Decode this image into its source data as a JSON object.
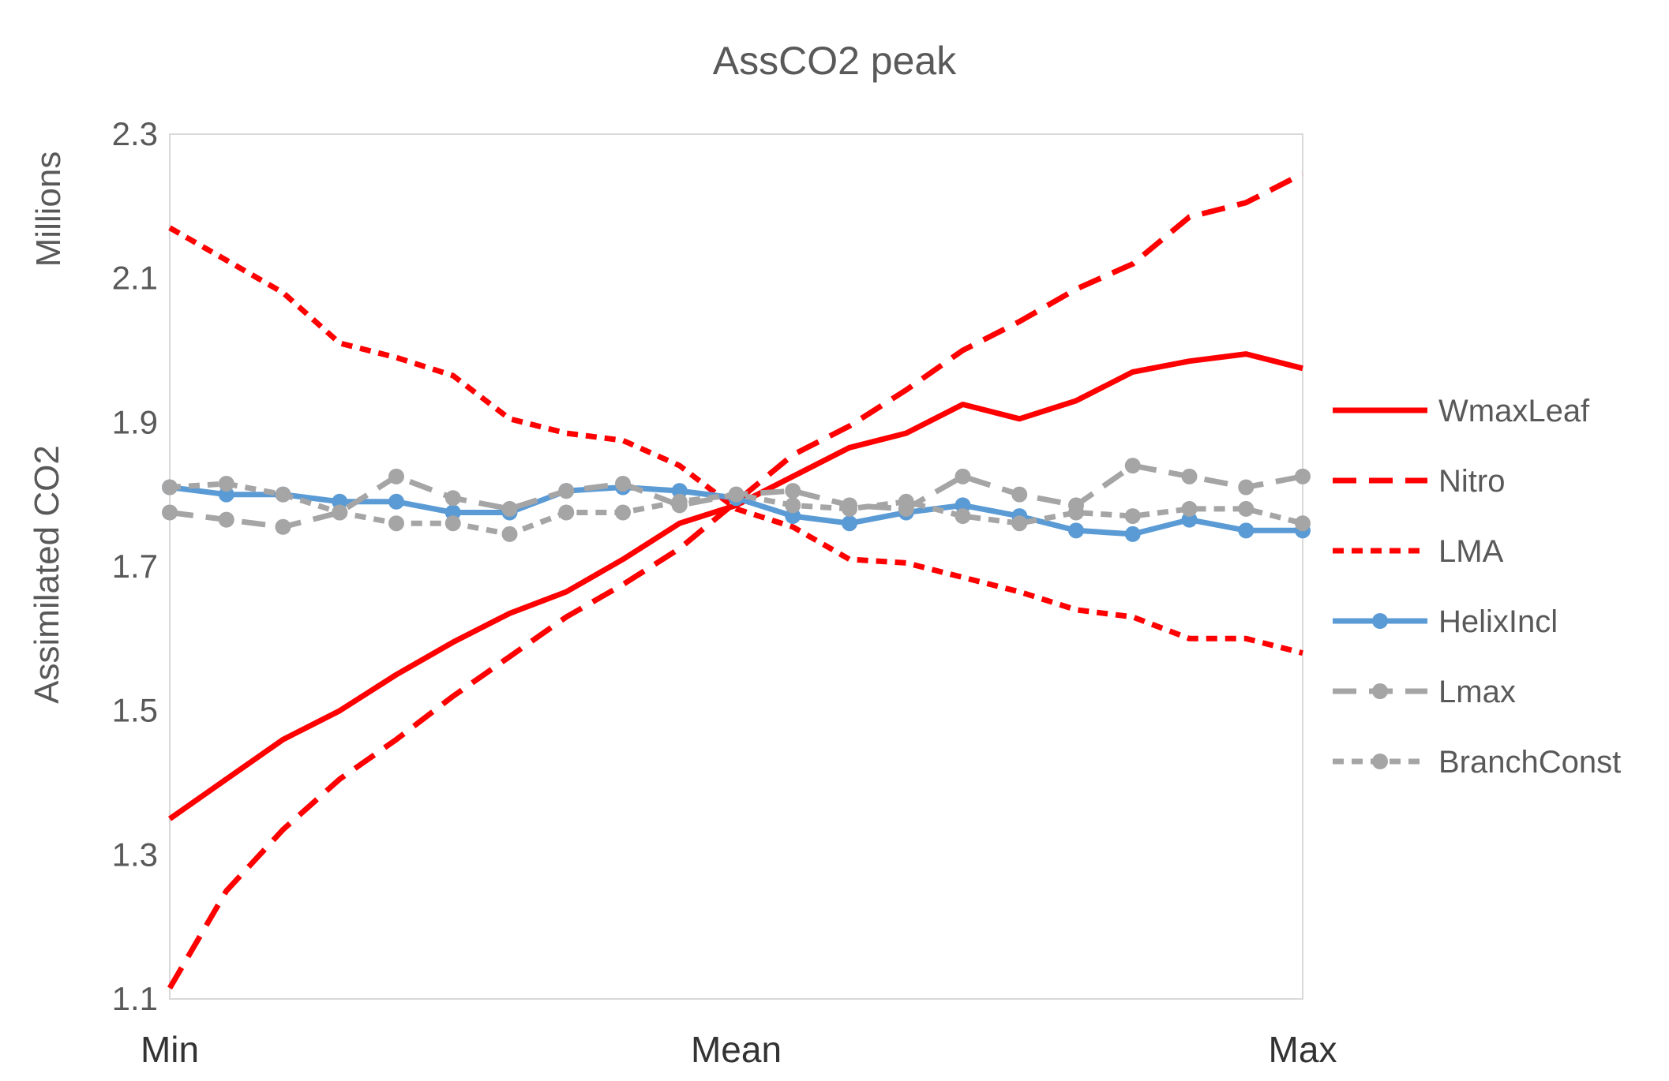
{
  "chart_data": {
    "type": "line",
    "title": "AssCO2 peak",
    "ylabel": "Assimilated CO2",
    "yunit_label": "Millions",
    "xlabel": "",
    "x_tick_labels": [
      "Min",
      "Mean",
      "Max"
    ],
    "ylim": [
      1.1,
      2.3
    ],
    "y_ticks": [
      "1.1",
      "1.3",
      "1.5",
      "1.7",
      "1.9",
      "2.1",
      "2.3"
    ],
    "y_tick_values": [
      1.1,
      1.3,
      1.5,
      1.7,
      1.9,
      2.1,
      2.3
    ],
    "n_points": 21,
    "grid": false,
    "legend_position": "right",
    "series": [
      {
        "name": "WmaxLeaf",
        "color": "#ff0000",
        "dash": "solid",
        "marker": false,
        "values": [
          1.35,
          1.405,
          1.46,
          1.5,
          1.55,
          1.595,
          1.635,
          1.665,
          1.71,
          1.76,
          1.785,
          1.825,
          1.865,
          1.885,
          1.925,
          1.905,
          1.93,
          1.97,
          1.985,
          1.995,
          1.975
        ]
      },
      {
        "name": "Nitro",
        "color": "#ff0000",
        "dash": "long-dash",
        "marker": false,
        "values": [
          1.115,
          1.25,
          1.335,
          1.405,
          1.46,
          1.52,
          1.575,
          1.63,
          1.675,
          1.725,
          1.79,
          1.855,
          1.895,
          1.945,
          2.0,
          2.04,
          2.085,
          2.12,
          2.185,
          2.205,
          2.245
        ]
      },
      {
        "name": "LMA",
        "color": "#ff0000",
        "dash": "short-dash",
        "marker": false,
        "values": [
          2.17,
          2.125,
          2.08,
          2.01,
          1.99,
          1.965,
          1.905,
          1.885,
          1.875,
          1.84,
          1.78,
          1.755,
          1.71,
          1.705,
          1.685,
          1.665,
          1.64,
          1.63,
          1.6,
          1.6,
          1.58
        ]
      },
      {
        "name": "HelixIncl",
        "color": "#5b9bd5",
        "dash": "solid",
        "marker": true,
        "values": [
          1.81,
          1.8,
          1.8,
          1.79,
          1.79,
          1.775,
          1.775,
          1.805,
          1.81,
          1.805,
          1.795,
          1.77,
          1.76,
          1.775,
          1.785,
          1.77,
          1.75,
          1.745,
          1.765,
          1.75,
          1.75
        ]
      },
      {
        "name": "Lmax",
        "color": "#a5a5a5",
        "dash": "long-dash",
        "marker": true,
        "values": [
          1.775,
          1.765,
          1.755,
          1.775,
          1.825,
          1.795,
          1.78,
          1.805,
          1.815,
          1.785,
          1.8,
          1.805,
          1.785,
          1.78,
          1.825,
          1.8,
          1.785,
          1.84,
          1.825,
          1.81,
          1.825
        ]
      },
      {
        "name": "BranchConst",
        "color": "#a5a5a5",
        "dash": "short-dash",
        "marker": true,
        "values": [
          1.81,
          1.815,
          1.8,
          1.775,
          1.76,
          1.76,
          1.745,
          1.775,
          1.775,
          1.79,
          1.8,
          1.785,
          1.78,
          1.79,
          1.77,
          1.76,
          1.775,
          1.77,
          1.78,
          1.78,
          1.76
        ]
      }
    ]
  }
}
